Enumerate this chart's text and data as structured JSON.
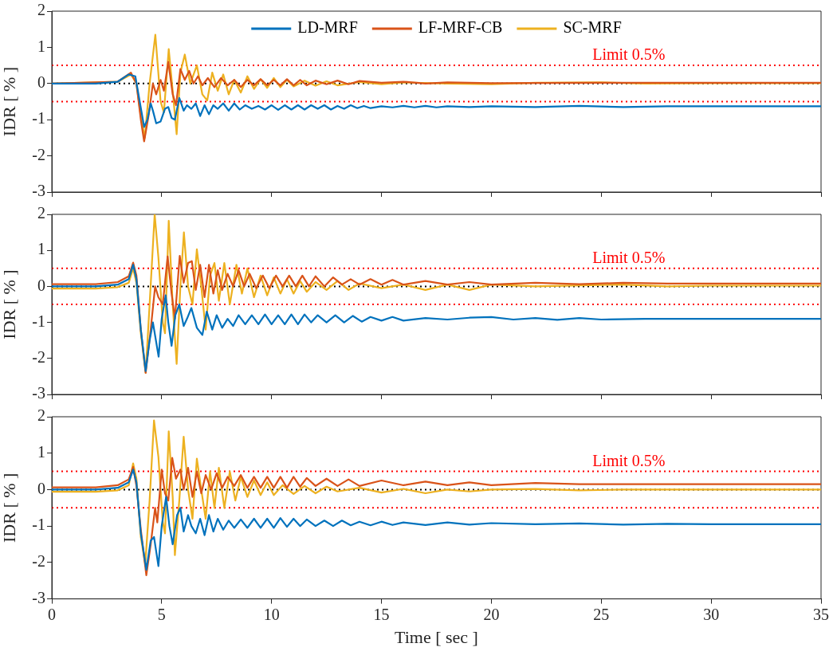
{
  "chart_data": [
    {
      "type": "line",
      "ylabel": "IDR [ % ]",
      "xlim": [
        0,
        35
      ],
      "xticks": [
        0,
        5,
        10,
        15,
        20,
        25,
        30,
        35
      ],
      "ylim": [
        -3,
        2
      ],
      "yticks": [
        -3,
        -2,
        -1,
        0,
        1,
        2
      ],
      "tick_labels": "y",
      "grid": false,
      "legend": "top",
      "line_style": "solid",
      "marker": "none",
      "ref_lines": [
        {
          "axis": "y",
          "value": 0.5,
          "label": "Limit 0.5%",
          "color": "#ff0000",
          "line_style": "dotted"
        },
        {
          "axis": "y",
          "value": -0.5,
          "color": "#ff0000",
          "line_style": "dotted"
        },
        {
          "axis": "y",
          "value": 0,
          "color": "#000000",
          "line_style": "dotted"
        }
      ],
      "series": [
        {
          "name": "LD-MRF",
          "color": "#0072bd",
          "x": [
            0,
            2,
            3,
            3.5,
            3.8,
            4.0,
            4.2,
            4.35,
            4.5,
            4.6,
            4.75,
            4.95,
            5.15,
            5.3,
            5.45,
            5.6,
            5.8,
            6.0,
            6.15,
            6.35,
            6.55,
            6.75,
            6.95,
            7.15,
            7.35,
            7.55,
            7.8,
            8.05,
            8.3,
            8.55,
            8.8,
            9.1,
            9.4,
            9.7,
            10.0,
            10.3,
            10.6,
            10.9,
            11.2,
            11.5,
            11.8,
            12.1,
            12.4,
            12.7,
            13.0,
            13.3,
            13.6,
            13.9,
            14.2,
            14.5,
            15,
            15.5,
            16,
            16.5,
            17,
            17.5,
            18,
            19,
            20,
            22,
            24,
            26,
            28,
            30,
            35
          ],
          "values": [
            0,
            0,
            0.05,
            0.25,
            0.2,
            -0.5,
            -1.2,
            -1.0,
            -0.55,
            -0.75,
            -1.1,
            -1.05,
            -0.7,
            -0.65,
            -0.95,
            -1.0,
            -0.4,
            -0.75,
            -0.6,
            -0.7,
            -0.55,
            -0.9,
            -0.6,
            -0.85,
            -0.6,
            -0.7,
            -0.55,
            -0.75,
            -0.55,
            -0.72,
            -0.6,
            -0.7,
            -0.62,
            -0.72,
            -0.6,
            -0.73,
            -0.6,
            -0.72,
            -0.6,
            -0.72,
            -0.6,
            -0.7,
            -0.6,
            -0.72,
            -0.62,
            -0.7,
            -0.6,
            -0.68,
            -0.62,
            -0.68,
            -0.63,
            -0.66,
            -0.62,
            -0.66,
            -0.62,
            -0.66,
            -0.63,
            -0.65,
            -0.63,
            -0.65,
            -0.62,
            -0.65,
            -0.63,
            -0.63,
            -0.63
          ]
        },
        {
          "name": "LF-MRF-CB",
          "color": "#d95319",
          "x": [
            0,
            3,
            3.6,
            3.85,
            4.05,
            4.2,
            4.4,
            4.6,
            4.75,
            4.95,
            5.1,
            5.3,
            5.5,
            5.65,
            5.85,
            6.05,
            6.25,
            6.45,
            6.65,
            6.85,
            7.1,
            7.4,
            7.7,
            8.0,
            8.3,
            8.6,
            8.9,
            9.2,
            9.5,
            9.8,
            10.1,
            10.4,
            10.7,
            11.0,
            11.3,
            11.6,
            12,
            12.5,
            13,
            13.5,
            14,
            15,
            16,
            17,
            18,
            20,
            25,
            30,
            35
          ],
          "values": [
            0,
            0.05,
            0.3,
            0.0,
            -1.0,
            -1.6,
            -0.9,
            0.0,
            -0.3,
            0.1,
            -0.2,
            0.6,
            -0.3,
            -0.6,
            0.4,
            0.1,
            0.35,
            0.0,
            0.2,
            -0.05,
            0.15,
            -0.1,
            0.15,
            -0.05,
            0.1,
            -0.1,
            0.1,
            -0.05,
            0.12,
            -0.05,
            0.1,
            -0.05,
            0.12,
            -0.05,
            0.1,
            -0.05,
            0.08,
            -0.02,
            0.08,
            -0.02,
            0.07,
            0.02,
            0.05,
            0.0,
            0.03,
            0.01,
            0.02,
            0.02,
            0.02
          ]
        },
        {
          "name": "SC-MRF",
          "color": "#edb120",
          "x": [
            0,
            3,
            3.6,
            3.85,
            4.05,
            4.23,
            4.45,
            4.71,
            4.95,
            5.1,
            5.32,
            5.5,
            5.68,
            5.85,
            6.05,
            6.3,
            6.6,
            6.85,
            7.07,
            7.3,
            7.55,
            7.8,
            8.05,
            8.3,
            8.6,
            8.9,
            9.2,
            9.5,
            9.8,
            10.1,
            10.4,
            10.7,
            11,
            11.5,
            12,
            12.5,
            13,
            14,
            15,
            16,
            18,
            20,
            22,
            25,
            27,
            30,
            35
          ],
          "values": [
            0,
            0.05,
            0.25,
            0.0,
            -0.9,
            -1.5,
            0.0,
            1.35,
            -0.5,
            -0.8,
            0.95,
            -0.2,
            -1.4,
            0.3,
            0.8,
            0.0,
            0.5,
            -0.3,
            -0.47,
            0.3,
            -0.2,
            0.25,
            -0.3,
            0.1,
            -0.25,
            0.2,
            -0.15,
            0.12,
            -0.12,
            0.15,
            -0.1,
            0.1,
            -0.08,
            0.08,
            -0.06,
            0.06,
            -0.05,
            0.04,
            -0.02,
            0.03,
            0.0,
            -0.02,
            0.02,
            0.03,
            0.0,
            0.01,
            0.01
          ]
        }
      ]
    },
    {
      "type": "line",
      "ylabel": "IDR [ % ]",
      "xlim": [
        0,
        35
      ],
      "xticks": [
        0,
        5,
        10,
        15,
        20,
        25,
        30,
        35
      ],
      "ylim": [
        -3,
        2
      ],
      "yticks": [
        -3,
        -2,
        -1,
        0,
        1,
        2
      ],
      "tick_labels": "y",
      "grid": false,
      "line_style": "solid",
      "marker": "none",
      "ref_lines": [
        {
          "axis": "y",
          "value": 0.5,
          "label": "Limit 0.5%",
          "color": "#ff0000",
          "line_style": "dotted"
        },
        {
          "axis": "y",
          "value": -0.5,
          "color": "#ff0000",
          "line_style": "dotted"
        },
        {
          "axis": "y",
          "value": 0,
          "color": "#000000",
          "line_style": "dotted"
        }
      ],
      "series": [
        {
          "color": "#0072bd",
          "x": [
            0,
            2,
            3,
            3.5,
            3.7,
            3.85,
            4.05,
            4.27,
            4.45,
            4.6,
            4.86,
            5.0,
            5.18,
            5.3,
            5.45,
            5.62,
            5.8,
            6.0,
            6.15,
            6.35,
            6.6,
            6.85,
            7.05,
            7.3,
            7.5,
            7.75,
            8.0,
            8.25,
            8.5,
            8.8,
            9.1,
            9.4,
            9.7,
            10,
            10.3,
            10.6,
            10.9,
            11.2,
            11.5,
            11.8,
            12.1,
            12.5,
            12.9,
            13.3,
            13.7,
            14.1,
            14.5,
            15,
            15.5,
            16,
            17,
            18,
            19,
            20,
            21,
            22,
            23,
            24,
            25,
            27,
            30,
            35
          ],
          "values": [
            0,
            0,
            0.05,
            0.2,
            0.6,
            0.2,
            -1.2,
            -2.35,
            -1.5,
            -1.0,
            -1.95,
            -0.9,
            -0.25,
            -1.0,
            -1.65,
            -0.8,
            -0.5,
            -1.1,
            -0.9,
            -0.6,
            -1.15,
            -1.35,
            -0.7,
            -1.2,
            -0.8,
            -1.15,
            -0.9,
            -1.1,
            -0.8,
            -1.05,
            -0.8,
            -1.05,
            -0.78,
            -1.05,
            -0.8,
            -1.05,
            -0.78,
            -1.05,
            -0.78,
            -1.0,
            -0.8,
            -1.0,
            -0.8,
            -1.0,
            -0.82,
            -0.98,
            -0.85,
            -0.95,
            -0.85,
            -0.95,
            -0.88,
            -0.92,
            -0.87,
            -0.85,
            -0.92,
            -0.88,
            -0.93,
            -0.88,
            -0.92,
            -0.9,
            -0.9,
            -0.9
          ]
        },
        {
          "color": "#d95319",
          "x": [
            0,
            2,
            3,
            3.5,
            3.7,
            3.85,
            4.05,
            4.27,
            4.5,
            4.7,
            4.85,
            5.05,
            5.27,
            5.45,
            5.6,
            5.82,
            6.0,
            6.2,
            6.37,
            6.55,
            6.75,
            6.95,
            7.15,
            7.35,
            7.55,
            7.75,
            8.0,
            8.25,
            8.5,
            8.75,
            9.0,
            9.3,
            9.6,
            9.9,
            10.2,
            10.5,
            10.8,
            11.1,
            11.4,
            11.7,
            12,
            12.4,
            12.8,
            13.2,
            13.6,
            14,
            14.5,
            15,
            15.5,
            16,
            17,
            18,
            19,
            20,
            22,
            24,
            26,
            28,
            30,
            35
          ],
          "values": [
            0.06,
            0.06,
            0.12,
            0.28,
            0.66,
            0.3,
            -1.2,
            -2.4,
            -1.2,
            0.0,
            -0.3,
            -0.5,
            0.83,
            -0.2,
            -0.9,
            0.85,
            0.1,
            0.65,
            0.7,
            -0.1,
            0.6,
            -0.3,
            0.6,
            -0.2,
            0.45,
            -0.1,
            0.35,
            0.0,
            0.45,
            0.0,
            0.35,
            -0.05,
            0.3,
            -0.05,
            0.3,
            0.0,
            0.3,
            0.0,
            0.3,
            0.0,
            0.28,
            0.0,
            0.25,
            0.05,
            0.2,
            0.05,
            0.2,
            0.05,
            0.18,
            0.05,
            0.15,
            0.05,
            0.12,
            0.05,
            0.1,
            0.06,
            0.1,
            0.08,
            0.08,
            0.08
          ]
        },
        {
          "color": "#edb120",
          "x": [
            0,
            2,
            3,
            3.5,
            3.7,
            3.85,
            4.05,
            4.27,
            4.45,
            4.68,
            4.85,
            5.05,
            5.15,
            5.32,
            5.5,
            5.68,
            5.85,
            6.01,
            6.2,
            6.4,
            6.6,
            6.8,
            7.0,
            7.2,
            7.4,
            7.6,
            7.85,
            8.1,
            8.4,
            8.65,
            8.9,
            9.2,
            9.5,
            9.8,
            10.1,
            10.4,
            10.7,
            11.0,
            11.3,
            11.6,
            12,
            12.5,
            13,
            13.5,
            14,
            15,
            16,
            17,
            18,
            19,
            20,
            22,
            24,
            26,
            28,
            30,
            35
          ],
          "values": [
            -0.06,
            -0.06,
            -0.02,
            0.1,
            0.5,
            0.1,
            -1.3,
            -2.4,
            -0.5,
            2.0,
            0.8,
            -1.0,
            -1.3,
            1.82,
            -0.5,
            -2.15,
            0.0,
            1.5,
            0.0,
            -0.5,
            1.03,
            0.0,
            -1.2,
            0.3,
            0.65,
            -0.4,
            0.65,
            -0.5,
            0.6,
            -0.2,
            0.5,
            -0.3,
            0.3,
            -0.25,
            0.25,
            -0.2,
            0.2,
            -0.2,
            0.15,
            -0.15,
            0.12,
            -0.1,
            0.15,
            -0.1,
            0.08,
            -0.05,
            0.05,
            -0.1,
            0.05,
            -0.1,
            0.05,
            0.0,
            0.03,
            0.05,
            0.0,
            0.02,
            0.02
          ]
        }
      ]
    },
    {
      "type": "line",
      "xlabel": "Time [ sec ]",
      "ylabel": "IDR [ % ]",
      "xlim": [
        0,
        35
      ],
      "xticks": [
        0,
        5,
        10,
        15,
        20,
        25,
        30,
        35
      ],
      "ylim": [
        -3,
        2
      ],
      "yticks": [
        -3,
        -2,
        -1,
        0,
        1,
        2
      ],
      "grid": false,
      "line_style": "solid",
      "marker": "none",
      "ref_lines": [
        {
          "axis": "y",
          "value": 0.5,
          "label": "Limit 0.5%",
          "color": "#ff0000",
          "line_style": "dotted"
        },
        {
          "axis": "y",
          "value": -0.5,
          "color": "#ff0000",
          "line_style": "dotted"
        },
        {
          "axis": "y",
          "value": 0,
          "color": "#000000",
          "line_style": "dotted"
        }
      ],
      "series": [
        {
          "color": "#0072bd",
          "x": [
            0,
            2,
            3,
            3.5,
            3.7,
            3.85,
            4.05,
            4.3,
            4.5,
            4.65,
            4.85,
            5.0,
            5.2,
            5.35,
            5.5,
            5.7,
            5.85,
            6.0,
            6.2,
            6.35,
            6.55,
            6.75,
            6.95,
            7.15,
            7.35,
            7.55,
            7.8,
            8.05,
            8.3,
            8.6,
            8.9,
            9.2,
            9.5,
            9.8,
            10.1,
            10.4,
            10.7,
            11.0,
            11.3,
            11.6,
            12,
            12.4,
            12.8,
            13.2,
            13.6,
            14,
            14.5,
            15,
            15.5,
            16,
            17,
            18,
            19,
            20,
            22,
            24,
            26,
            28,
            30,
            35
          ],
          "values": [
            0,
            0,
            0.05,
            0.2,
            0.55,
            0.2,
            -1.2,
            -2.2,
            -1.4,
            -1.3,
            -2.1,
            -1.0,
            -0.2,
            -1.0,
            -1.5,
            -0.7,
            -0.5,
            -1.15,
            -0.7,
            -1.0,
            -1.2,
            -0.8,
            -1.25,
            -0.7,
            -1.15,
            -0.8,
            -1.1,
            -0.85,
            -1.05,
            -0.82,
            -1.05,
            -0.8,
            -1.05,
            -0.8,
            -1.05,
            -0.78,
            -1.02,
            -0.8,
            -1.0,
            -0.82,
            -1.0,
            -0.85,
            -1.0,
            -0.85,
            -0.98,
            -0.88,
            -0.98,
            -0.88,
            -0.97,
            -0.9,
            -0.97,
            -0.9,
            -0.96,
            -0.92,
            -0.95,
            -0.93,
            -0.96,
            -0.94,
            -0.95,
            -0.95
          ]
        },
        {
          "color": "#d95319",
          "x": [
            0,
            2,
            3,
            3.5,
            3.7,
            3.85,
            4.05,
            4.3,
            4.5,
            4.7,
            4.8,
            5.0,
            5.15,
            5.3,
            5.48,
            5.65,
            5.85,
            6.0,
            6.2,
            6.4,
            6.6,
            6.8,
            7.0,
            7.25,
            7.5,
            7.75,
            8.0,
            8.3,
            8.6,
            8.9,
            9.2,
            9.5,
            9.8,
            10.1,
            10.4,
            10.7,
            11,
            11.3,
            11.6,
            12,
            12.5,
            13,
            13.5,
            14,
            15,
            16,
            17,
            18,
            19,
            20,
            22,
            24,
            26,
            28,
            30,
            35
          ],
          "values": [
            0.06,
            0.06,
            0.12,
            0.28,
            0.62,
            0.1,
            -1.1,
            -2.35,
            -1.5,
            -0.5,
            -0.9,
            0.55,
            -0.1,
            -0.3,
            0.87,
            0.3,
            0.55,
            0.0,
            0.6,
            -0.2,
            0.5,
            -0.1,
            0.4,
            0.0,
            0.45,
            0.05,
            0.35,
            0.1,
            0.4,
            0.05,
            0.35,
            0.05,
            0.35,
            0.05,
            0.35,
            0.05,
            0.35,
            0.08,
            0.32,
            0.1,
            0.3,
            0.1,
            0.28,
            0.1,
            0.25,
            0.12,
            0.22,
            0.12,
            0.2,
            0.12,
            0.18,
            0.15,
            0.15,
            0.15,
            0.15,
            0.15
          ]
        },
        {
          "color": "#edb120",
          "x": [
            0,
            2,
            3,
            3.5,
            3.7,
            3.85,
            4.05,
            4.25,
            4.45,
            4.65,
            4.85,
            5.05,
            5.15,
            5.32,
            5.5,
            5.6,
            5.8,
            6.0,
            6.2,
            6.4,
            6.6,
            6.8,
            7.0,
            7.2,
            7.4,
            7.6,
            7.85,
            8.1,
            8.35,
            8.6,
            8.9,
            9.2,
            9.5,
            9.8,
            10.1,
            10.5,
            11,
            11.5,
            12,
            12.5,
            13,
            14,
            15,
            16,
            17,
            18,
            19,
            20,
            22,
            24,
            26,
            28,
            30,
            35
          ],
          "values": [
            -0.06,
            -0.06,
            -0.02,
            0.12,
            0.72,
            0.3,
            -1.3,
            -2.05,
            -0.3,
            1.9,
            0.9,
            -0.9,
            -1.2,
            1.6,
            -0.2,
            -1.8,
            -0.3,
            1.45,
            0.0,
            -0.8,
            0.85,
            0.0,
            -0.8,
            0.5,
            -0.5,
            0.6,
            -0.5,
            0.5,
            -0.3,
            0.35,
            -0.2,
            0.25,
            -0.15,
            0.2,
            -0.15,
            0.12,
            -0.12,
            0.1,
            -0.1,
            0.08,
            -0.05,
            0.05,
            -0.08,
            0.02,
            -0.1,
            0.0,
            -0.05,
            0.0,
            0.02,
            -0.02,
            0.0,
            0.0,
            0.0,
            0.0
          ]
        }
      ]
    }
  ]
}
